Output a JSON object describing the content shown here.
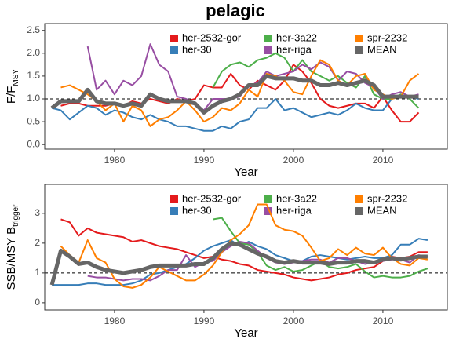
{
  "title": "pelagic",
  "chart_data": [
    {
      "type": "line",
      "xlabel": "Year",
      "ylabel": {
        "text": "F/F",
        "sub": "MSY"
      },
      "xlim": [
        1972.2,
        2017.2
      ],
      "ylim": [
        -0.1,
        2.65
      ],
      "xticks": [
        1980,
        1990,
        2000,
        2010
      ],
      "yticks": [
        {
          "value": 0,
          "label": "0.0"
        },
        0.5,
        {
          "value": 1,
          "label": "1.0"
        },
        1.5,
        {
          "value": 2,
          "label": "2.0"
        },
        2.5
      ],
      "refline": 1,
      "grid": false,
      "x": [
        1973,
        1974,
        1975,
        1976,
        1977,
        1978,
        1979,
        1980,
        1981,
        1982,
        1983,
        1984,
        1985,
        1986,
        1987,
        1988,
        1989,
        1990,
        1991,
        1992,
        1993,
        1994,
        1995,
        1996,
        1997,
        1998,
        1999,
        2000,
        2001,
        2002,
        2003,
        2004,
        2005,
        2006,
        2007,
        2008,
        2009,
        2010,
        2011,
        2012,
        2013,
        2014
      ],
      "series": [
        {
          "name": "her-2532-gor",
          "color": "#e41a1c",
          "linewidth": 2,
          "values": [
            null,
            0.85,
            0.9,
            0.9,
            0.85,
            0.85,
            0.85,
            0.9,
            0.85,
            0.95,
            0.9,
            1.0,
            0.95,
            0.9,
            1.0,
            0.95,
            1.0,
            1.3,
            1.25,
            1.25,
            1.55,
            1.3,
            1.2,
            1.4,
            1.3,
            1.2,
            1.4,
            1.75,
            1.6,
            1.35,
            1.0,
            0.85,
            0.8,
            0.85,
            0.9,
            0.9,
            0.8,
            1.05,
            0.75,
            0.5,
            0.5,
            0.7
          ]
        },
        {
          "name": "her-30",
          "color": "#377eb8",
          "linewidth": 2,
          "values": [
            0.8,
            0.75,
            0.55,
            0.7,
            0.85,
            0.8,
            0.65,
            0.75,
            0.7,
            0.6,
            0.55,
            0.65,
            0.55,
            0.5,
            0.4,
            0.4,
            0.35,
            0.3,
            0.3,
            0.4,
            0.35,
            0.5,
            0.55,
            0.8,
            0.8,
            1.0,
            0.75,
            0.8,
            0.7,
            0.6,
            0.65,
            0.7,
            0.65,
            0.75,
            0.9,
            0.8,
            0.75,
            0.75,
            1.0,
            1.05,
            1.05,
            1.0
          ]
        },
        {
          "name": "her-3a22",
          "color": "#4daf4a",
          "linewidth": 2,
          "values": [
            null,
            null,
            null,
            null,
            null,
            null,
            null,
            null,
            null,
            null,
            null,
            null,
            null,
            null,
            null,
            null,
            null,
            null,
            1.25,
            1.6,
            1.75,
            1.8,
            1.7,
            1.85,
            1.9,
            2.0,
            1.9,
            1.6,
            1.85,
            1.6,
            1.5,
            1.4,
            1.5,
            1.35,
            1.25,
            1.5,
            1.1,
            1.0,
            1.0,
            1.1,
            1.0,
            0.8
          ]
        },
        {
          "name": "her-riga",
          "color": "#984ea3",
          "linewidth": 2,
          "values": [
            null,
            null,
            null,
            null,
            2.15,
            1.2,
            1.4,
            1.1,
            1.4,
            1.3,
            1.5,
            2.2,
            1.75,
            1.6,
            1.05,
            1.0,
            0.9,
            0.75,
            1.0,
            1.0,
            1.0,
            1.05,
            1.3,
            1.35,
            1.6,
            1.5,
            1.55,
            1.6,
            1.75,
            1.65,
            1.8,
            1.7,
            1.4,
            1.6,
            1.55,
            1.35,
            1.25,
            1.0,
            1.1,
            1.15,
            1.05,
            1.1
          ]
        },
        {
          "name": "spr-2232",
          "color": "#ff7f00",
          "linewidth": 2,
          "values": [
            null,
            1.25,
            1.3,
            1.2,
            1.1,
            0.95,
            0.75,
            0.9,
            0.5,
            0.85,
            0.75,
            0.4,
            0.55,
            0.6,
            0.75,
            0.95,
            0.75,
            0.5,
            0.6,
            0.8,
            0.75,
            0.9,
            1.2,
            1.05,
            1.55,
            1.5,
            1.4,
            1.15,
            1.1,
            1.5,
            1.85,
            1.75,
            1.4,
            1.3,
            1.5,
            1.55,
            1.2,
            1.1,
            1.0,
            1.05,
            1.4,
            1.55
          ]
        },
        {
          "name": "MEAN",
          "color": "#666666",
          "linewidth": 5,
          "values": [
            0.8,
            0.95,
            0.95,
            0.95,
            1.2,
            0.95,
            0.9,
            0.9,
            0.85,
            0.9,
            0.85,
            1.1,
            1.0,
            0.95,
            0.95,
            0.95,
            0.9,
            0.7,
            0.85,
            0.95,
            1.0,
            1.1,
            1.3,
            1.3,
            1.5,
            1.45,
            1.45,
            1.45,
            1.4,
            1.4,
            1.3,
            1.3,
            1.35,
            1.3,
            1.35,
            1.4,
            1.3,
            1.05,
            1.05,
            1.05,
            1.05,
            1.05
          ]
        }
      ]
    },
    {
      "type": "line",
      "xlabel": "Year",
      "ylabel": {
        "text": "SSB/MSY B",
        "sub": "trigger"
      },
      "xlim": [
        1972.2,
        2017.2
      ],
      "ylim": [
        -0.24,
        3.97
      ],
      "xticks": [
        1980,
        1990,
        2000,
        2010
      ],
      "yticks": [
        0,
        1,
        2,
        3
      ],
      "refline": 1,
      "grid": false,
      "x": [
        1973,
        1974,
        1975,
        1976,
        1977,
        1978,
        1979,
        1980,
        1981,
        1982,
        1983,
        1984,
        1985,
        1986,
        1987,
        1988,
        1989,
        1990,
        1991,
        1992,
        1993,
        1994,
        1995,
        1996,
        1997,
        1998,
        1999,
        2000,
        2001,
        2002,
        2003,
        2004,
        2005,
        2006,
        2007,
        2008,
        2009,
        2010,
        2011,
        2012,
        2013,
        2014,
        2015
      ],
      "series": [
        {
          "name": "her-2532-gor",
          "color": "#e41a1c",
          "linewidth": 2,
          "values": [
            null,
            2.8,
            2.7,
            2.25,
            2.5,
            2.35,
            2.3,
            2.25,
            2.2,
            2.05,
            2.1,
            2.0,
            1.9,
            1.85,
            1.8,
            1.7,
            1.6,
            1.5,
            1.55,
            1.45,
            1.4,
            1.3,
            1.25,
            1.1,
            1.05,
            1.0,
            0.95,
            0.85,
            0.8,
            0.75,
            0.8,
            0.85,
            0.95,
            1.0,
            1.1,
            1.15,
            1.2,
            1.4,
            1.55,
            1.5,
            1.55,
            1.7,
            1.7
          ]
        },
        {
          "name": "her-30",
          "color": "#377eb8",
          "linewidth": 2,
          "values": [
            0.6,
            0.6,
            0.6,
            0.6,
            0.65,
            0.65,
            0.6,
            0.6,
            0.6,
            0.65,
            0.75,
            0.95,
            1.0,
            1.1,
            1.2,
            1.3,
            1.5,
            1.75,
            1.9,
            2.0,
            2.1,
            1.9,
            2.05,
            1.9,
            1.8,
            1.6,
            1.5,
            1.4,
            1.4,
            1.55,
            1.6,
            1.55,
            1.5,
            1.45,
            1.5,
            1.55,
            1.5,
            1.5,
            1.6,
            1.95,
            1.95,
            2.15,
            2.1
          ]
        },
        {
          "name": "her-3a22",
          "color": "#4daf4a",
          "linewidth": 2,
          "values": [
            null,
            null,
            null,
            null,
            null,
            null,
            null,
            null,
            null,
            null,
            null,
            null,
            null,
            null,
            null,
            null,
            null,
            null,
            2.8,
            2.85,
            2.4,
            2.0,
            1.95,
            1.7,
            1.25,
            1.1,
            1.2,
            1.05,
            1.1,
            1.25,
            1.4,
            1.2,
            1.15,
            1.2,
            1.3,
            1.05,
            0.85,
            0.9,
            0.85,
            0.85,
            0.9,
            1.05,
            1.15
          ]
        },
        {
          "name": "her-riga",
          "color": "#984ea3",
          "linewidth": 2,
          "values": [
            null,
            null,
            null,
            null,
            0.9,
            0.85,
            0.85,
            0.8,
            0.75,
            0.8,
            0.8,
            0.75,
            0.9,
            1.1,
            1.1,
            1.6,
            1.2,
            1.35,
            1.4,
            1.7,
            1.9,
            2.05,
            2.0,
            1.75,
            1.5,
            1.35,
            1.3,
            1.35,
            1.4,
            1.45,
            1.45,
            1.35,
            1.5,
            1.5,
            1.4,
            1.3,
            1.35,
            1.4,
            1.45,
            1.45,
            1.35,
            1.6,
            1.55
          ]
        },
        {
          "name": "spr-2232",
          "color": "#ff7f00",
          "linewidth": 2,
          "values": [
            null,
            1.9,
            1.6,
            1.35,
            2.1,
            1.5,
            1.35,
            0.8,
            0.55,
            0.5,
            0.6,
            0.85,
            1.2,
            1.05,
            0.9,
            0.75,
            0.75,
            0.95,
            1.25,
            1.7,
            2.1,
            2.3,
            2.6,
            3.3,
            3.3,
            2.6,
            2.45,
            2.4,
            2.25,
            1.85,
            1.4,
            1.5,
            1.8,
            1.6,
            1.85,
            1.65,
            1.6,
            1.85,
            1.5,
            1.3,
            1.25,
            1.5,
            1.45
          ]
        },
        {
          "name": "MEAN",
          "color": "#666666",
          "linewidth": 5,
          "values": [
            0.6,
            1.75,
            1.55,
            1.3,
            1.35,
            1.2,
            1.1,
            1.05,
            1.0,
            1.05,
            1.1,
            1.2,
            1.25,
            1.25,
            1.25,
            1.25,
            1.3,
            1.3,
            1.5,
            1.8,
            2.0,
            1.95,
            1.8,
            1.65,
            1.55,
            1.4,
            1.35,
            1.4,
            1.35,
            1.35,
            1.35,
            1.3,
            1.35,
            1.35,
            1.4,
            1.4,
            1.35,
            1.45,
            1.5,
            1.45,
            1.5,
            1.55,
            1.55
          ]
        }
      ]
    }
  ]
}
